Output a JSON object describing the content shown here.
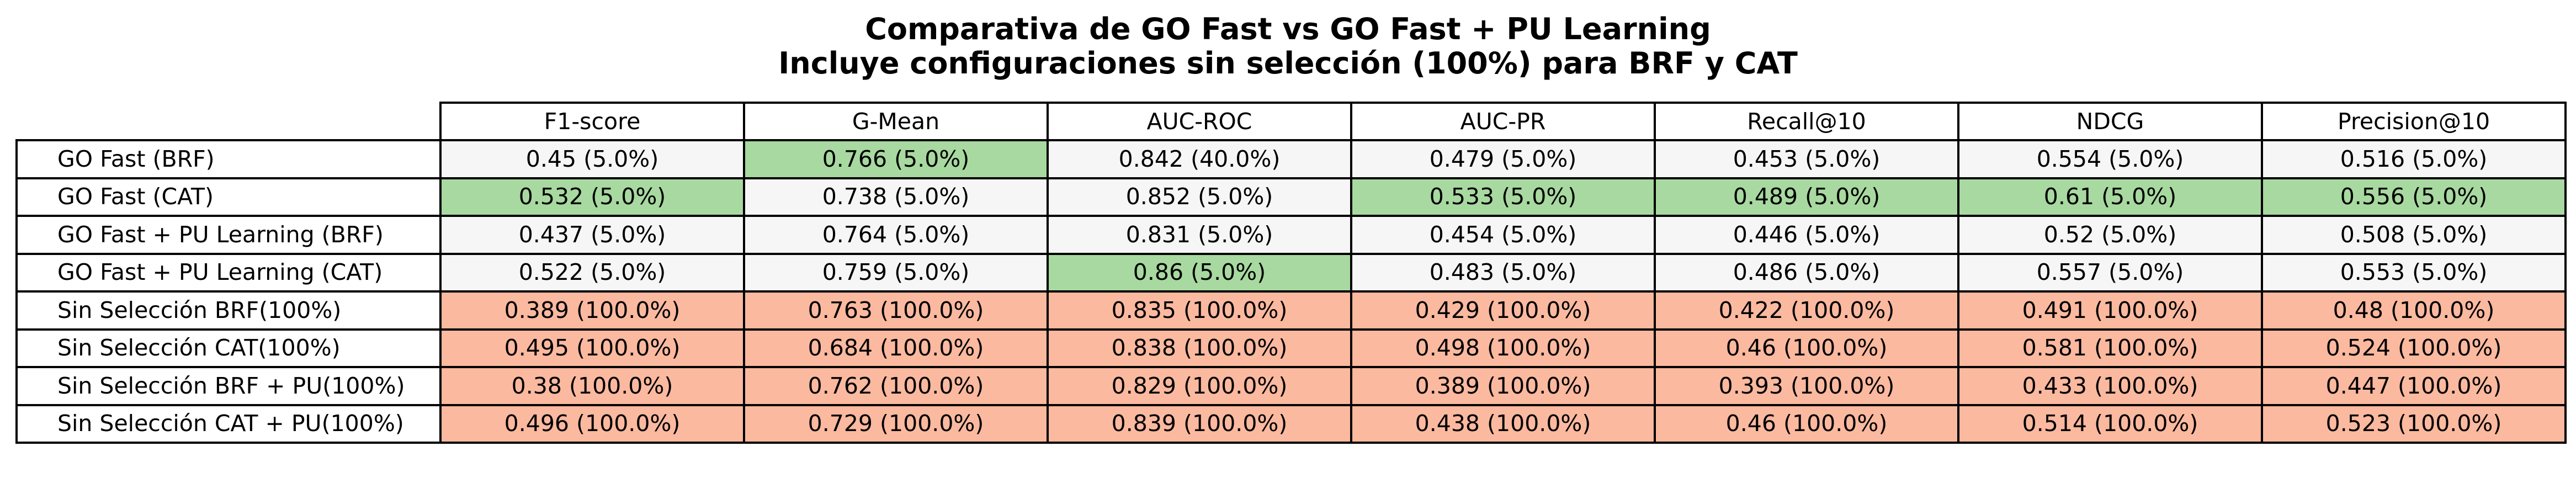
{
  "title_lines": [
    "Comparativa de GO Fast vs GO Fast + PU Learning",
    "Incluye configuraciones sin selección (100%) para BRF y CAT"
  ],
  "colors": {
    "best": "#a8d9a0",
    "no_selection": "#fbb9a0",
    "neutral": "#f6f6f6",
    "border": "#000000",
    "header_bg": "#ffffff"
  },
  "chart_data": {
    "type": "table",
    "title": "Comparativa de GO Fast vs GO Fast + PU Learning\nIncluye configuraciones sin selección (100%) para BRF y CAT",
    "columns": [
      "F1-score",
      "G-Mean",
      "AUC-ROC",
      "AUC-PR",
      "Recall@10",
      "NDCG",
      "Precision@10"
    ],
    "rows": [
      {
        "label": "GO Fast (BRF)",
        "group": "go_fast",
        "cells": [
          "0.45 (5.0%)",
          "0.766 (5.0%)",
          "0.842 (40.0%)",
          "0.479 (5.0%)",
          "0.453 (5.0%)",
          "0.554 (5.0%)",
          "0.516 (5.0%)"
        ],
        "highlight": [
          false,
          true,
          false,
          false,
          false,
          false,
          false
        ]
      },
      {
        "label": "GO Fast (CAT)",
        "group": "go_fast",
        "cells": [
          "0.532 (5.0%)",
          "0.738 (5.0%)",
          "0.852 (5.0%)",
          "0.533 (5.0%)",
          "0.489 (5.0%)",
          "0.61 (5.0%)",
          "0.556 (5.0%)"
        ],
        "highlight": [
          true,
          false,
          false,
          true,
          true,
          true,
          true
        ]
      },
      {
        "label": "GO Fast + PU Learning (BRF)",
        "group": "go_fast",
        "cells": [
          "0.437 (5.0%)",
          "0.764 (5.0%)",
          "0.831 (5.0%)",
          "0.454 (5.0%)",
          "0.446 (5.0%)",
          "0.52 (5.0%)",
          "0.508 (5.0%)"
        ],
        "highlight": [
          false,
          false,
          false,
          false,
          false,
          false,
          false
        ]
      },
      {
        "label": "GO Fast + PU Learning (CAT)",
        "group": "go_fast",
        "cells": [
          "0.522 (5.0%)",
          "0.759 (5.0%)",
          "0.86 (5.0%)",
          "0.483 (5.0%)",
          "0.486 (5.0%)",
          "0.557 (5.0%)",
          "0.553 (5.0%)"
        ],
        "highlight": [
          false,
          false,
          true,
          false,
          false,
          false,
          false
        ]
      },
      {
        "label": "Sin Selección BRF(100%)",
        "group": "no_selection",
        "cells": [
          "0.389 (100.0%)",
          "0.763 (100.0%)",
          "0.835 (100.0%)",
          "0.429 (100.0%)",
          "0.422 (100.0%)",
          "0.491 (100.0%)",
          "0.48 (100.0%)"
        ],
        "highlight": [
          false,
          false,
          false,
          false,
          false,
          false,
          false
        ]
      },
      {
        "label": "Sin Selección CAT(100%)",
        "group": "no_selection",
        "cells": [
          "0.495 (100.0%)",
          "0.684 (100.0%)",
          "0.838 (100.0%)",
          "0.498 (100.0%)",
          "0.46 (100.0%)",
          "0.581 (100.0%)",
          "0.524 (100.0%)"
        ],
        "highlight": [
          false,
          false,
          false,
          false,
          false,
          false,
          false
        ]
      },
      {
        "label": "Sin Selección BRF + PU(100%)",
        "group": "no_selection",
        "cells": [
          "0.38 (100.0%)",
          "0.762 (100.0%)",
          "0.829 (100.0%)",
          "0.389 (100.0%)",
          "0.393 (100.0%)",
          "0.433 (100.0%)",
          "0.447 (100.0%)"
        ],
        "highlight": [
          false,
          false,
          false,
          false,
          false,
          false,
          false
        ]
      },
      {
        "label": "Sin Selección CAT + PU(100%)",
        "group": "no_selection",
        "cells": [
          "0.496 (100.0%)",
          "0.729 (100.0%)",
          "0.839 (100.0%)",
          "0.438 (100.0%)",
          "0.46 (100.0%)",
          "0.514 (100.0%)",
          "0.523 (100.0%)"
        ],
        "highlight": [
          false,
          false,
          false,
          false,
          false,
          false,
          false
        ]
      }
    ]
  }
}
